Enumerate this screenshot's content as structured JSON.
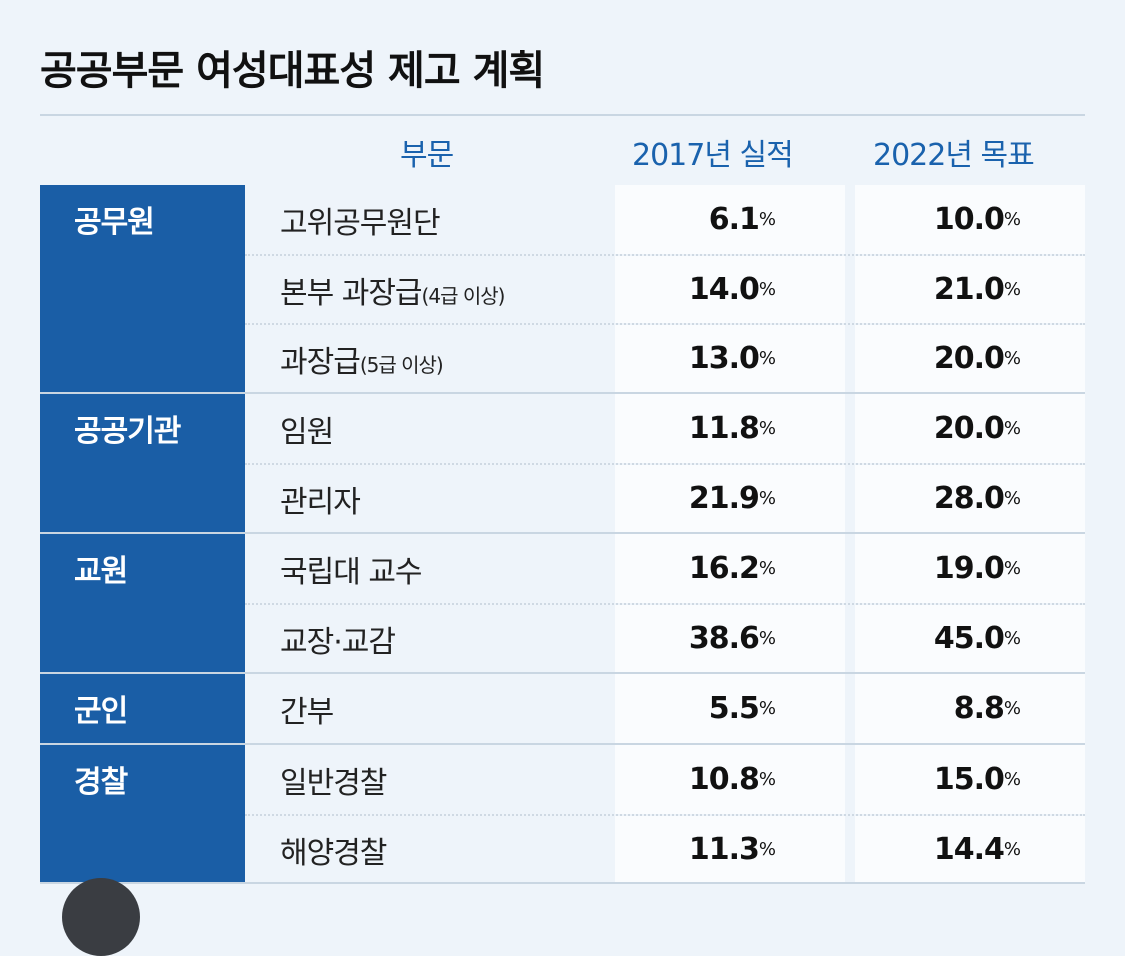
{
  "title": "공공부문 여성대표성 제고 계획",
  "headers": {
    "sector": "부문",
    "actual": "2017년 실적",
    "target": "2022년 목표"
  },
  "unit": "%",
  "groups": [
    {
      "category": "공무원",
      "rows": [
        {
          "sub": "고위공무원단",
          "note": "",
          "actual": "6.1",
          "target": "10.0"
        },
        {
          "sub": "본부 과장급",
          "note": "(4급 이상)",
          "actual": "14.0",
          "target": "21.0"
        },
        {
          "sub": "과장급",
          "note": "(5급 이상)",
          "actual": "13.0",
          "target": "20.0"
        }
      ]
    },
    {
      "category": "공공기관",
      "rows": [
        {
          "sub": "임원",
          "note": "",
          "actual": "11.8",
          "target": "20.0"
        },
        {
          "sub": "관리자",
          "note": "",
          "actual": "21.9",
          "target": "28.0"
        }
      ]
    },
    {
      "category": "교원",
      "rows": [
        {
          "sub": "국립대 교수",
          "note": "",
          "actual": "16.2",
          "target": "19.0"
        },
        {
          "sub": "교장·교감",
          "note": "",
          "actual": "38.6",
          "target": "45.0"
        }
      ]
    },
    {
      "category": "군인",
      "rows": [
        {
          "sub": "간부",
          "note": "",
          "actual": "5.5",
          "target": "8.8"
        }
      ]
    },
    {
      "category": "경찰",
      "rows": [
        {
          "sub": "일반경찰",
          "note": "",
          "actual": "10.8",
          "target": "15.0"
        },
        {
          "sub": "해양경찰",
          "note": "",
          "actual": "11.3",
          "target": "14.4"
        }
      ]
    }
  ],
  "colors": {
    "category_bg": "#1a5ea6",
    "header_text": "#1a62ad",
    "background": "#eef4fa"
  }
}
